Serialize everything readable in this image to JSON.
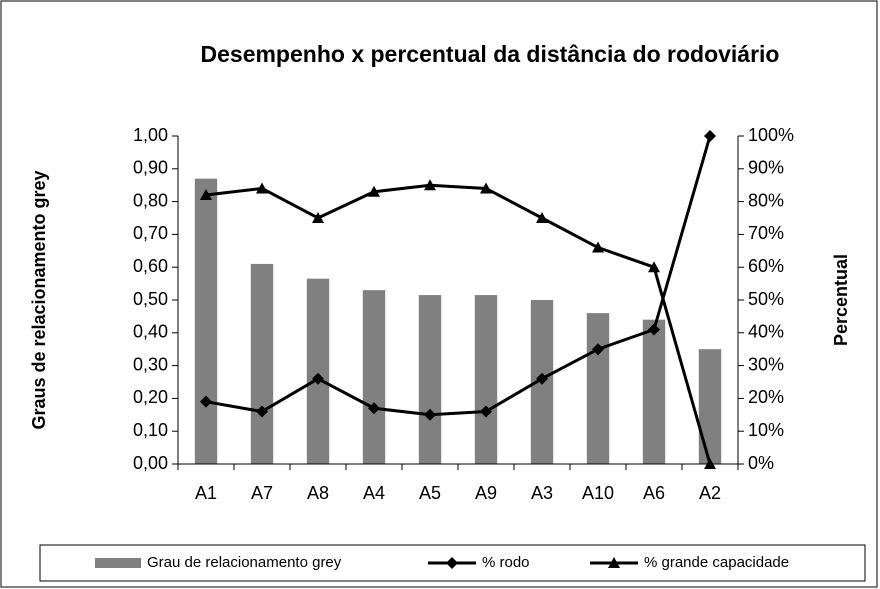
{
  "chart_data": {
    "type": "bar_line",
    "title": "Desempenho x percentual da distância do rodoviário",
    "y_label": "Graus de relacionamento  grey",
    "y2_label": "Percentual",
    "categories": [
      "A1",
      "A7",
      "A8",
      "A4",
      "A5",
      "A9",
      "A3",
      "A10",
      "A6",
      "A2"
    ],
    "series": [
      {
        "name": "Grau de relacionamento grey",
        "type": "bar",
        "color": "#808080",
        "values": [
          0.87,
          0.61,
          0.565,
          0.53,
          0.515,
          0.515,
          0.5,
          0.46,
          0.44,
          0.35
        ]
      },
      {
        "name": "% rodo",
        "type": "line",
        "marker": "diamond",
        "axis": "y2",
        "color": "#000000",
        "values": [
          19,
          16,
          26,
          17,
          15,
          16,
          26,
          35,
          41,
          100
        ]
      },
      {
        "name": "% grande capacidade",
        "type": "line",
        "marker": "triangle",
        "axis": "y2",
        "color": "#000000",
        "values": [
          82,
          84,
          75,
          83,
          85,
          84,
          75,
          66,
          60,
          0
        ]
      }
    ],
    "ylim": [
      0,
      1
    ],
    "yticks": [
      {
        "value": 0,
        "label": "0,00"
      },
      {
        "value": 0.1,
        "label": "0,10"
      },
      {
        "value": 0.2,
        "label": "0,20"
      },
      {
        "value": 0.3,
        "label": "0,30"
      },
      {
        "value": 0.4,
        "label": "0,40"
      },
      {
        "value": 0.5,
        "label": "0,50"
      },
      {
        "value": 0.6,
        "label": "0,60"
      },
      {
        "value": 0.7,
        "label": "0,70"
      },
      {
        "value": 0.8,
        "label": "0,80"
      },
      {
        "value": 0.9,
        "label": "0,90"
      },
      {
        "value": 1,
        "label": "1,00"
      }
    ],
    "y2lim": [
      0,
      100
    ],
    "y2ticks": [
      {
        "value": 0,
        "label": "0%"
      },
      {
        "value": 10,
        "label": "10%"
      },
      {
        "value": 20,
        "label": "20%"
      },
      {
        "value": 30,
        "label": "30%"
      },
      {
        "value": 40,
        "label": "40%"
      },
      {
        "value": 50,
        "label": "50%"
      },
      {
        "value": 60,
        "label": "60%"
      },
      {
        "value": 70,
        "label": "70%"
      },
      {
        "value": 80,
        "label": "80%"
      },
      {
        "value": 90,
        "label": "90%"
      },
      {
        "value": 100,
        "label": "100%"
      }
    ],
    "legend": "bottom"
  }
}
